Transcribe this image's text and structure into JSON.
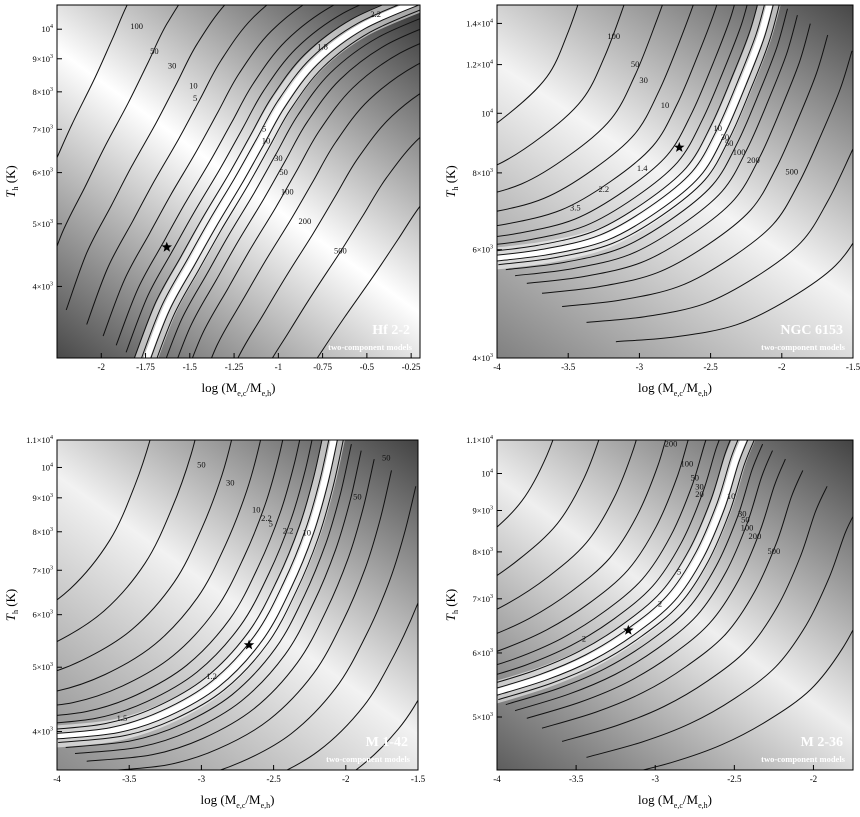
{
  "chart_data": [
    {
      "type": "contour",
      "object_label": "Hf 2-2",
      "model_label": "two-component models",
      "xlabel": "log (M",
      "xlabel_sub": "e,c",
      "xlabel_mid": "/M",
      "xlabel_sub2": "e,h",
      "xlabel_end": ")",
      "ylabel": "T",
      "ylabel_sub": "h",
      "ylabel_unit": " (K)",
      "xlim": [
        -2.25,
        -0.2
      ],
      "ylim": [
        3100,
        10900
      ],
      "ylog": true,
      "xticks": [
        "-2",
        "-1.75",
        "-1.5",
        "-1.25",
        "-1",
        "-0.75",
        "-0.5",
        "-0.25"
      ],
      "xtick_values": [
        -2,
        -1.75,
        -1.5,
        -1.25,
        -1,
        -0.75,
        -0.5,
        -0.25
      ],
      "yticks": [
        {
          "value": 4000,
          "mant": "4×10",
          "exp": "3"
        },
        {
          "value": 5000,
          "mant": "5×10",
          "exp": "3"
        },
        {
          "value": 6000,
          "mant": "6×10",
          "exp": "3"
        },
        {
          "value": 7000,
          "mant": "7×10",
          "exp": "3"
        },
        {
          "value": 8000,
          "mant": "8×10",
          "exp": "3"
        },
        {
          "value": 9000,
          "mant": "9×10",
          "exp": "3"
        },
        {
          "value": 10000,
          "mant": "10",
          "exp": "4"
        }
      ],
      "best_fit": {
        "x": -1.63,
        "y": 4600
      },
      "contour_labels": [
        {
          "text": "2.2",
          "x": -0.45,
          "y": 10450
        },
        {
          "text": "100",
          "x": -1.8,
          "y": 10000
        },
        {
          "text": "50",
          "x": -1.7,
          "y": 9150
        },
        {
          "text": "30",
          "x": -1.6,
          "y": 8700
        },
        {
          "text": "1.8",
          "x": -0.75,
          "y": 9300
        },
        {
          "text": "10",
          "x": -1.48,
          "y": 8100
        },
        {
          "text": "5",
          "x": -1.47,
          "y": 7750
        },
        {
          "text": "5",
          "x": -1.08,
          "y": 6950
        },
        {
          "text": "10",
          "x": -1.07,
          "y": 6650
        },
        {
          "text": "30",
          "x": -1.0,
          "y": 6250
        },
        {
          "text": "50",
          "x": -0.97,
          "y": 5950
        },
        {
          "text": "100",
          "x": -0.95,
          "y": 5550
        },
        {
          "text": "200",
          "x": -0.85,
          "y": 5000
        },
        {
          "text": "500",
          "x": -0.65,
          "y": 4500
        }
      ]
    },
    {
      "type": "contour",
      "object_label": "NGC 6153",
      "model_label": "two-component models",
      "xlabel": "log (M",
      "xlabel_sub": "e,c",
      "xlabel_mid": "/M",
      "xlabel_sub2": "e,h",
      "xlabel_end": ")",
      "ylabel": "T",
      "ylabel_sub": "h",
      "ylabel_unit": " (K)",
      "xlim": [
        -4,
        -1.5
      ],
      "ylim": [
        4000,
        15000
      ],
      "ylog": true,
      "xticks": [
        "-4",
        "-3.5",
        "-3",
        "-2.5",
        "-2",
        "-1.5"
      ],
      "xtick_values": [
        -4,
        -3.5,
        -3,
        -2.5,
        -2,
        -1.5
      ],
      "yticks": [
        {
          "value": 4000,
          "mant": "4×10",
          "exp": "3"
        },
        {
          "value": 6000,
          "mant": "6×10",
          "exp": "3"
        },
        {
          "value": 8000,
          "mant": "8×10",
          "exp": "3"
        },
        {
          "value": 10000,
          "mant": "10",
          "exp": "4"
        },
        {
          "value": 12000,
          "mant": "1.2×10",
          "exp": "4"
        },
        {
          "value": 14000,
          "mant": "1.4×10",
          "exp": "4"
        }
      ],
      "best_fit": {
        "x": -2.72,
        "y": 8800
      },
      "contour_labels": [
        {
          "text": "100",
          "x": -3.18,
          "y": 13200
        },
        {
          "text": "50",
          "x": -3.03,
          "y": 11900
        },
        {
          "text": "30",
          "x": -2.97,
          "y": 11200
        },
        {
          "text": "10",
          "x": -2.82,
          "y": 10200
        },
        {
          "text": "10",
          "x": -2.45,
          "y": 9350
        },
        {
          "text": "30",
          "x": -2.4,
          "y": 9050
        },
        {
          "text": "50",
          "x": -2.37,
          "y": 8850
        },
        {
          "text": "100",
          "x": -2.3,
          "y": 8550
        },
        {
          "text": "200",
          "x": -2.2,
          "y": 8300
        },
        {
          "text": "500",
          "x": -1.93,
          "y": 7950
        },
        {
          "text": "1.4",
          "x": -2.98,
          "y": 8050
        },
        {
          "text": "2.2",
          "x": -3.25,
          "y": 7450
        },
        {
          "text": "3.5",
          "x": -3.45,
          "y": 6950
        }
      ]
    },
    {
      "type": "contour",
      "object_label": "M 1-42",
      "model_label": "two-component models",
      "xlabel": "log (M",
      "xlabel_sub": "e,c",
      "xlabel_mid": "/M",
      "xlabel_sub2": "e,h",
      "xlabel_end": ")",
      "ylabel": "T",
      "ylabel_sub": "h",
      "ylabel_unit": " (K)",
      "xlim": [
        -4,
        -1.5
      ],
      "ylim": [
        3500,
        11000
      ],
      "ylog": true,
      "xticks": [
        "-4",
        "-3.5",
        "-3",
        "-2.5",
        "-2",
        "-1.5"
      ],
      "xtick_values": [
        -4,
        -3.5,
        -3,
        -2.5,
        -2,
        -1.5
      ],
      "yticks": [
        {
          "value": 4000,
          "mant": "4×10",
          "exp": "3"
        },
        {
          "value": 5000,
          "mant": "5×10",
          "exp": "3"
        },
        {
          "value": 6000,
          "mant": "6×10",
          "exp": "3"
        },
        {
          "value": 7000,
          "mant": "7×10",
          "exp": "3"
        },
        {
          "value": 8000,
          "mant": "8×10",
          "exp": "3"
        },
        {
          "value": 9000,
          "mant": "9×10",
          "exp": "3"
        },
        {
          "value": 10000,
          "mant": "10",
          "exp": "4"
        },
        {
          "value": 11000,
          "mant": "1.1×10",
          "exp": "4"
        }
      ],
      "best_fit": {
        "x": -2.67,
        "y": 5400
      },
      "contour_labels": [
        {
          "text": "50",
          "x": -1.72,
          "y": 10250
        },
        {
          "text": "50",
          "x": -3.0,
          "y": 10000
        },
        {
          "text": "30",
          "x": -2.8,
          "y": 9400
        },
        {
          "text": "50",
          "x": -1.92,
          "y": 8950
        },
        {
          "text": "10",
          "x": -2.62,
          "y": 8550
        },
        {
          "text": "2.2",
          "x": -2.55,
          "y": 8300
        },
        {
          "text": "5",
          "x": -2.52,
          "y": 8150
        },
        {
          "text": "2.2",
          "x": -2.4,
          "y": 7950
        },
        {
          "text": "10",
          "x": -2.27,
          "y": 7900
        },
        {
          "text": "1.2",
          "x": -2.93,
          "y": 4800
        },
        {
          "text": "1.5",
          "x": -3.55,
          "y": 4150
        }
      ]
    },
    {
      "type": "contour",
      "object_label": "M 2-36",
      "model_label": "two-component models",
      "xlabel": "log (M",
      "xlabel_sub": "e,c",
      "xlabel_mid": "/M",
      "xlabel_sub2": "e,h",
      "xlabel_end": ")",
      "ylabel": "T",
      "ylabel_sub": "h",
      "ylabel_unit": " (K)",
      "xlim": [
        -4,
        -1.75
      ],
      "ylim": [
        4300,
        11000
      ],
      "ylog": true,
      "xticks": [
        "-4",
        "-3.5",
        "-3",
        "-2.5",
        "-2"
      ],
      "xtick_values": [
        -4,
        -3.5,
        -3,
        -2.5,
        -2
      ],
      "yticks": [
        {
          "value": 5000,
          "mant": "5×10",
          "exp": "3"
        },
        {
          "value": 6000,
          "mant": "6×10",
          "exp": "3"
        },
        {
          "value": 7000,
          "mant": "7×10",
          "exp": "3"
        },
        {
          "value": 8000,
          "mant": "8×10",
          "exp": "3"
        },
        {
          "value": 9000,
          "mant": "9×10",
          "exp": "3"
        },
        {
          "value": 10000,
          "mant": "10",
          "exp": "4"
        },
        {
          "value": 11000,
          "mant": "1.1×10",
          "exp": "4"
        }
      ],
      "best_fit": {
        "x": -3.17,
        "y": 6400
      },
      "contour_labels": [
        {
          "text": "200",
          "x": -2.9,
          "y": 10800
        },
        {
          "text": "100",
          "x": -2.8,
          "y": 10200
        },
        {
          "text": "50",
          "x": -2.75,
          "y": 9800
        },
        {
          "text": "30",
          "x": -2.72,
          "y": 9550
        },
        {
          "text": "20",
          "x": -2.72,
          "y": 9350
        },
        {
          "text": "10",
          "x": -2.52,
          "y": 9300
        },
        {
          "text": "30",
          "x": -2.45,
          "y": 8850
        },
        {
          "text": "50",
          "x": -2.43,
          "y": 8700
        },
        {
          "text": "100",
          "x": -2.42,
          "y": 8500
        },
        {
          "text": "200",
          "x": -2.37,
          "y": 8300
        },
        {
          "text": "500",
          "x": -2.25,
          "y": 7950
        },
        {
          "text": "5",
          "x": -2.85,
          "y": 7500
        },
        {
          "text": "2",
          "x": -2.97,
          "y": 6850
        },
        {
          "text": "2",
          "x": -3.45,
          "y": 6200
        }
      ]
    }
  ]
}
